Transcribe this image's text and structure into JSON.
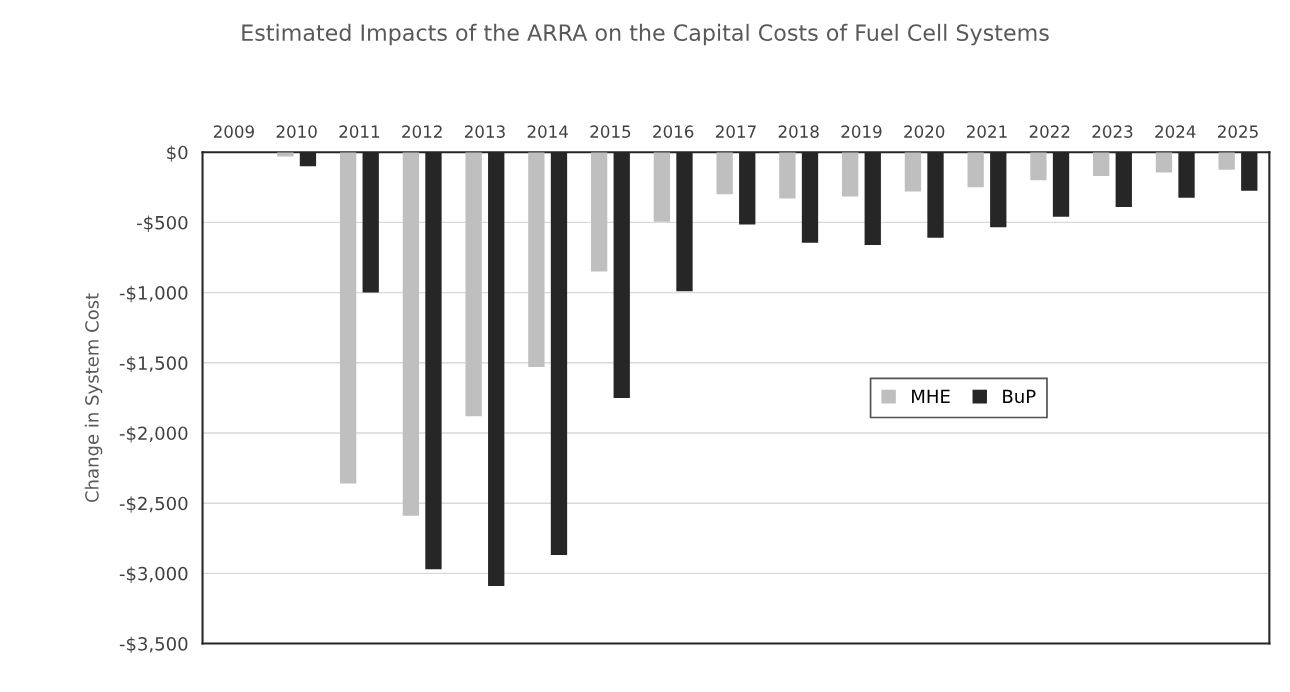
{
  "chart_data": {
    "type": "bar",
    "title": "Estimated Impacts of the ARRA on the Capital Costs of Fuel Cell Systems",
    "ylabel": "Change in System Cost",
    "categories": [
      "2009",
      "2010",
      "2011",
      "2012",
      "2013",
      "2014",
      "2015",
      "2016",
      "2017",
      "2018",
      "2019",
      "2020",
      "2021",
      "2022",
      "2023",
      "2024",
      "2025"
    ],
    "series": [
      {
        "name": "MHE",
        "color": "#bfbfbf",
        "values": [
          0,
          -30,
          -2360,
          -2590,
          -1880,
          -1530,
          -850,
          -495,
          -300,
          -330,
          -315,
          -280,
          -250,
          -200,
          -170,
          -145,
          -125
        ]
      },
      {
        "name": "BuP",
        "color": "#262626",
        "values": [
          0,
          -100,
          -1000,
          -2970,
          -3090,
          -2870,
          -1750,
          -990,
          -515,
          -645,
          -660,
          -610,
          -535,
          -460,
          -390,
          -325,
          -275
        ]
      }
    ],
    "ylim": [
      -3500,
      0
    ],
    "yticks": [
      {
        "value": -3500,
        "label": "-$3,500"
      },
      {
        "value": -3000,
        "label": "-$3,000"
      },
      {
        "value": -2500,
        "label": "-$2,500"
      },
      {
        "value": -2000,
        "label": "-$2,000"
      },
      {
        "value": -1500,
        "label": "-$1,500"
      },
      {
        "value": -1000,
        "label": "-$1,000"
      },
      {
        "value": -500,
        "label": "-$500"
      },
      {
        "value": 0,
        "label": "$0"
      }
    ],
    "grid": "y",
    "legend": "center right"
  }
}
